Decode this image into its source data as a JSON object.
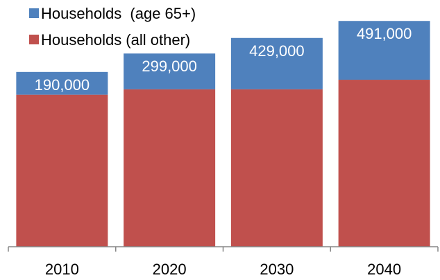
{
  "chart_data": {
    "type": "bar",
    "stacked": true,
    "categories": [
      "2010",
      "2020",
      "2030",
      "2040"
    ],
    "series": [
      {
        "name": "Households (all other)",
        "color": "#c0504d",
        "values": [
          1270000,
          1315000,
          1315000,
          1395000
        ]
      },
      {
        "name": "Households  (age 65+)",
        "color": "#4f81bd",
        "values": [
          190000,
          299000,
          429000,
          491000
        ],
        "data_labels": [
          "190,000",
          "299,000",
          "429,000",
          "491,000"
        ]
      }
    ],
    "legend": {
      "position": "top-left",
      "entries": [
        "Households  (age 65+)",
        "Households (all other)"
      ]
    },
    "ylim": [
      0,
      1980000
    ],
    "y_axis_visible": false,
    "grid": false,
    "title": "",
    "xlabel": "",
    "ylabel": ""
  }
}
